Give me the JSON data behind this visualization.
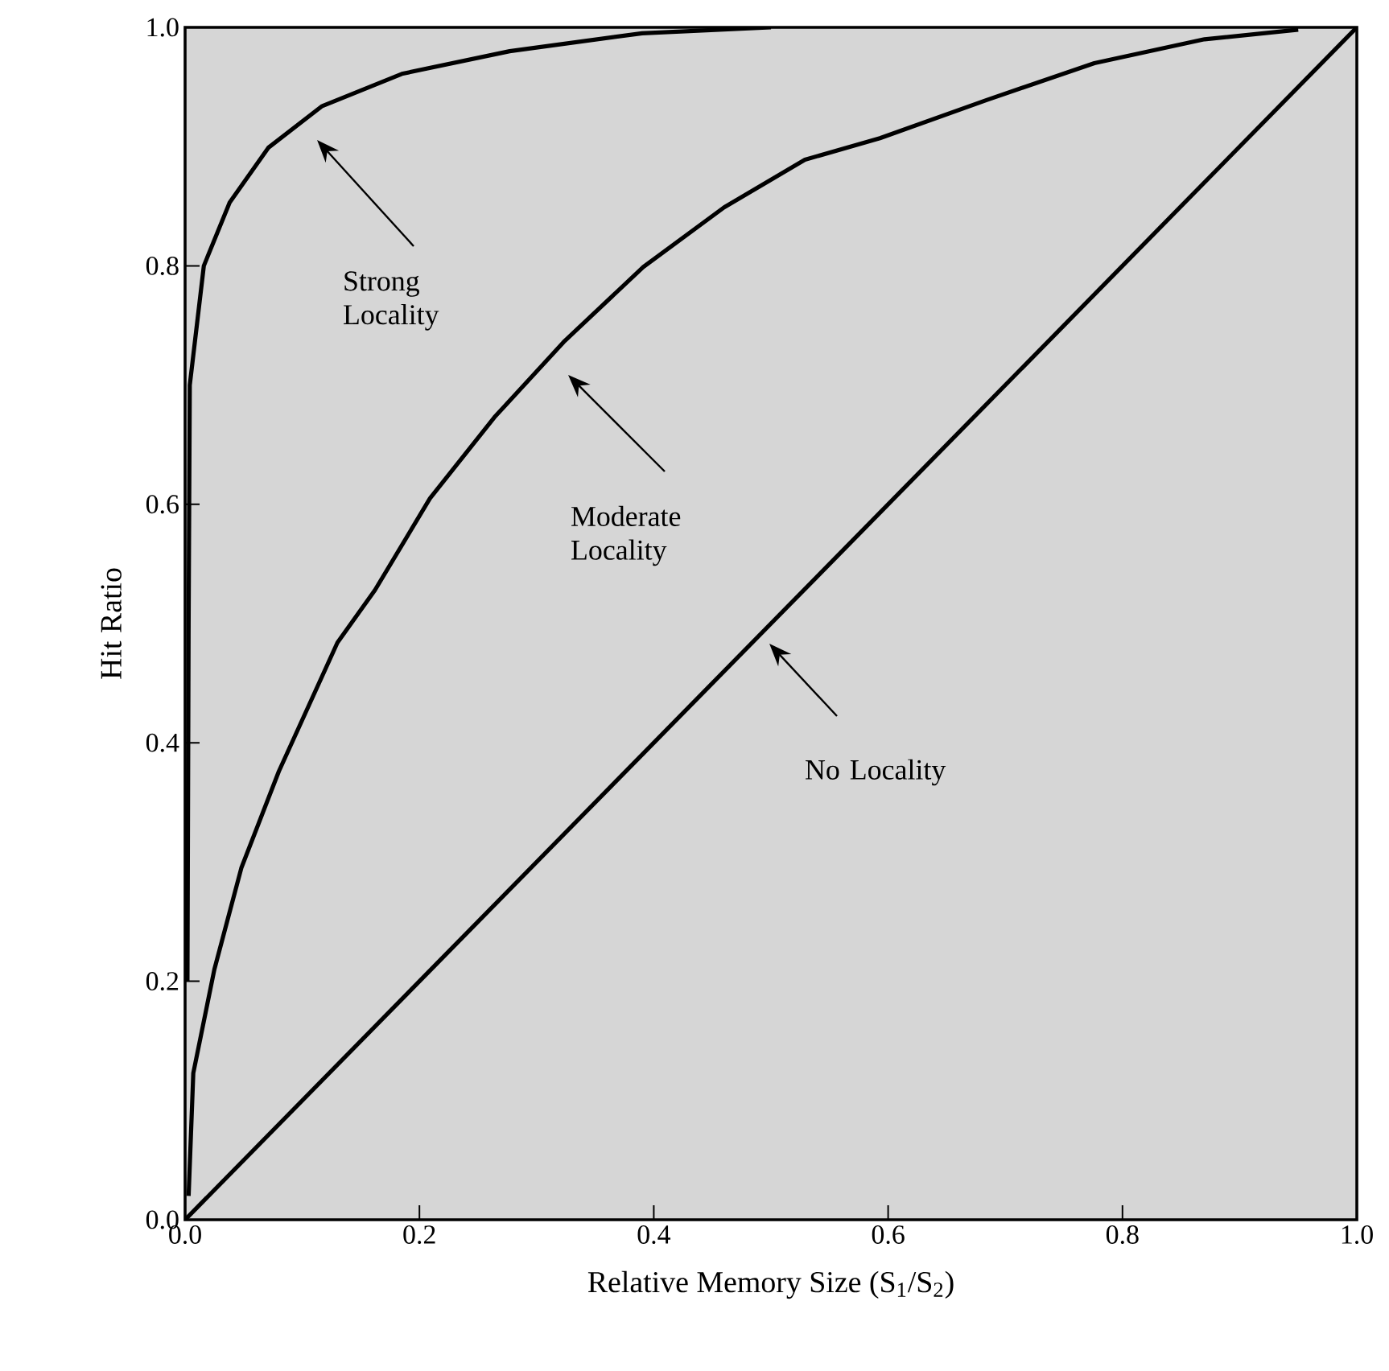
{
  "chart_data": {
    "type": "line",
    "xlabel": "Relative Memory Size (S$_{1}$/S$_{2}$)",
    "ylabel": "Hit Ratio",
    "xlim": [
      0,
      1
    ],
    "ylim": [
      0,
      1
    ],
    "xticks": [
      {
        "value": 0,
        "label": "0.0"
      },
      {
        "value": 0.2,
        "label": "0.2"
      },
      {
        "value": 0.4,
        "label": "0.4"
      },
      {
        "value": 0.6,
        "label": "0.6"
      },
      {
        "value": 0.8,
        "label": "0.8"
      },
      {
        "value": 1,
        "label": "1.0"
      }
    ],
    "yticks": [
      {
        "value": 0,
        "label": "0.0"
      },
      {
        "value": 0.2,
        "label": "0.2"
      },
      {
        "value": 0.4,
        "label": "0.4"
      },
      {
        "value": 0.6,
        "label": "0.6"
      },
      {
        "value": 0.8,
        "label": "0.8"
      },
      {
        "value": 1,
        "label": "1.0"
      }
    ],
    "grid": false,
    "line_style": "solid",
    "series": [
      {
        "color": "#000000",
        "x": [
          0.002,
          0.003,
          0.004,
          0.016,
          0.038,
          0.071,
          0.117,
          0.185,
          0.277,
          0.39,
          0.5
        ],
        "values": [
          0.2,
          0.5,
          0.7,
          0.8,
          0.853,
          0.899,
          0.934,
          0.961,
          0.98,
          0.995,
          1.0
        ]
      },
      {
        "color": "#000000",
        "x": [
          0.003,
          0.007,
          0.025,
          0.048,
          0.08,
          0.13,
          0.162,
          0.209,
          0.264,
          0.323,
          0.391,
          0.46,
          0.529,
          0.593,
          0.684,
          0.776,
          0.87,
          0.95
        ],
        "values": [
          0.02,
          0.123,
          0.21,
          0.295,
          0.376,
          0.484,
          0.528,
          0.605,
          0.673,
          0.736,
          0.799,
          0.849,
          0.889,
          0.907,
          0.939,
          0.97,
          0.99,
          0.998
        ]
      },
      {
        "color": "#000000",
        "x": [
          0,
          1
        ],
        "values": [
          0,
          1
        ]
      }
    ],
    "annotations": [
      "Strong Locality",
      "Moderate Locality",
      "No Locality"
    ]
  }
}
